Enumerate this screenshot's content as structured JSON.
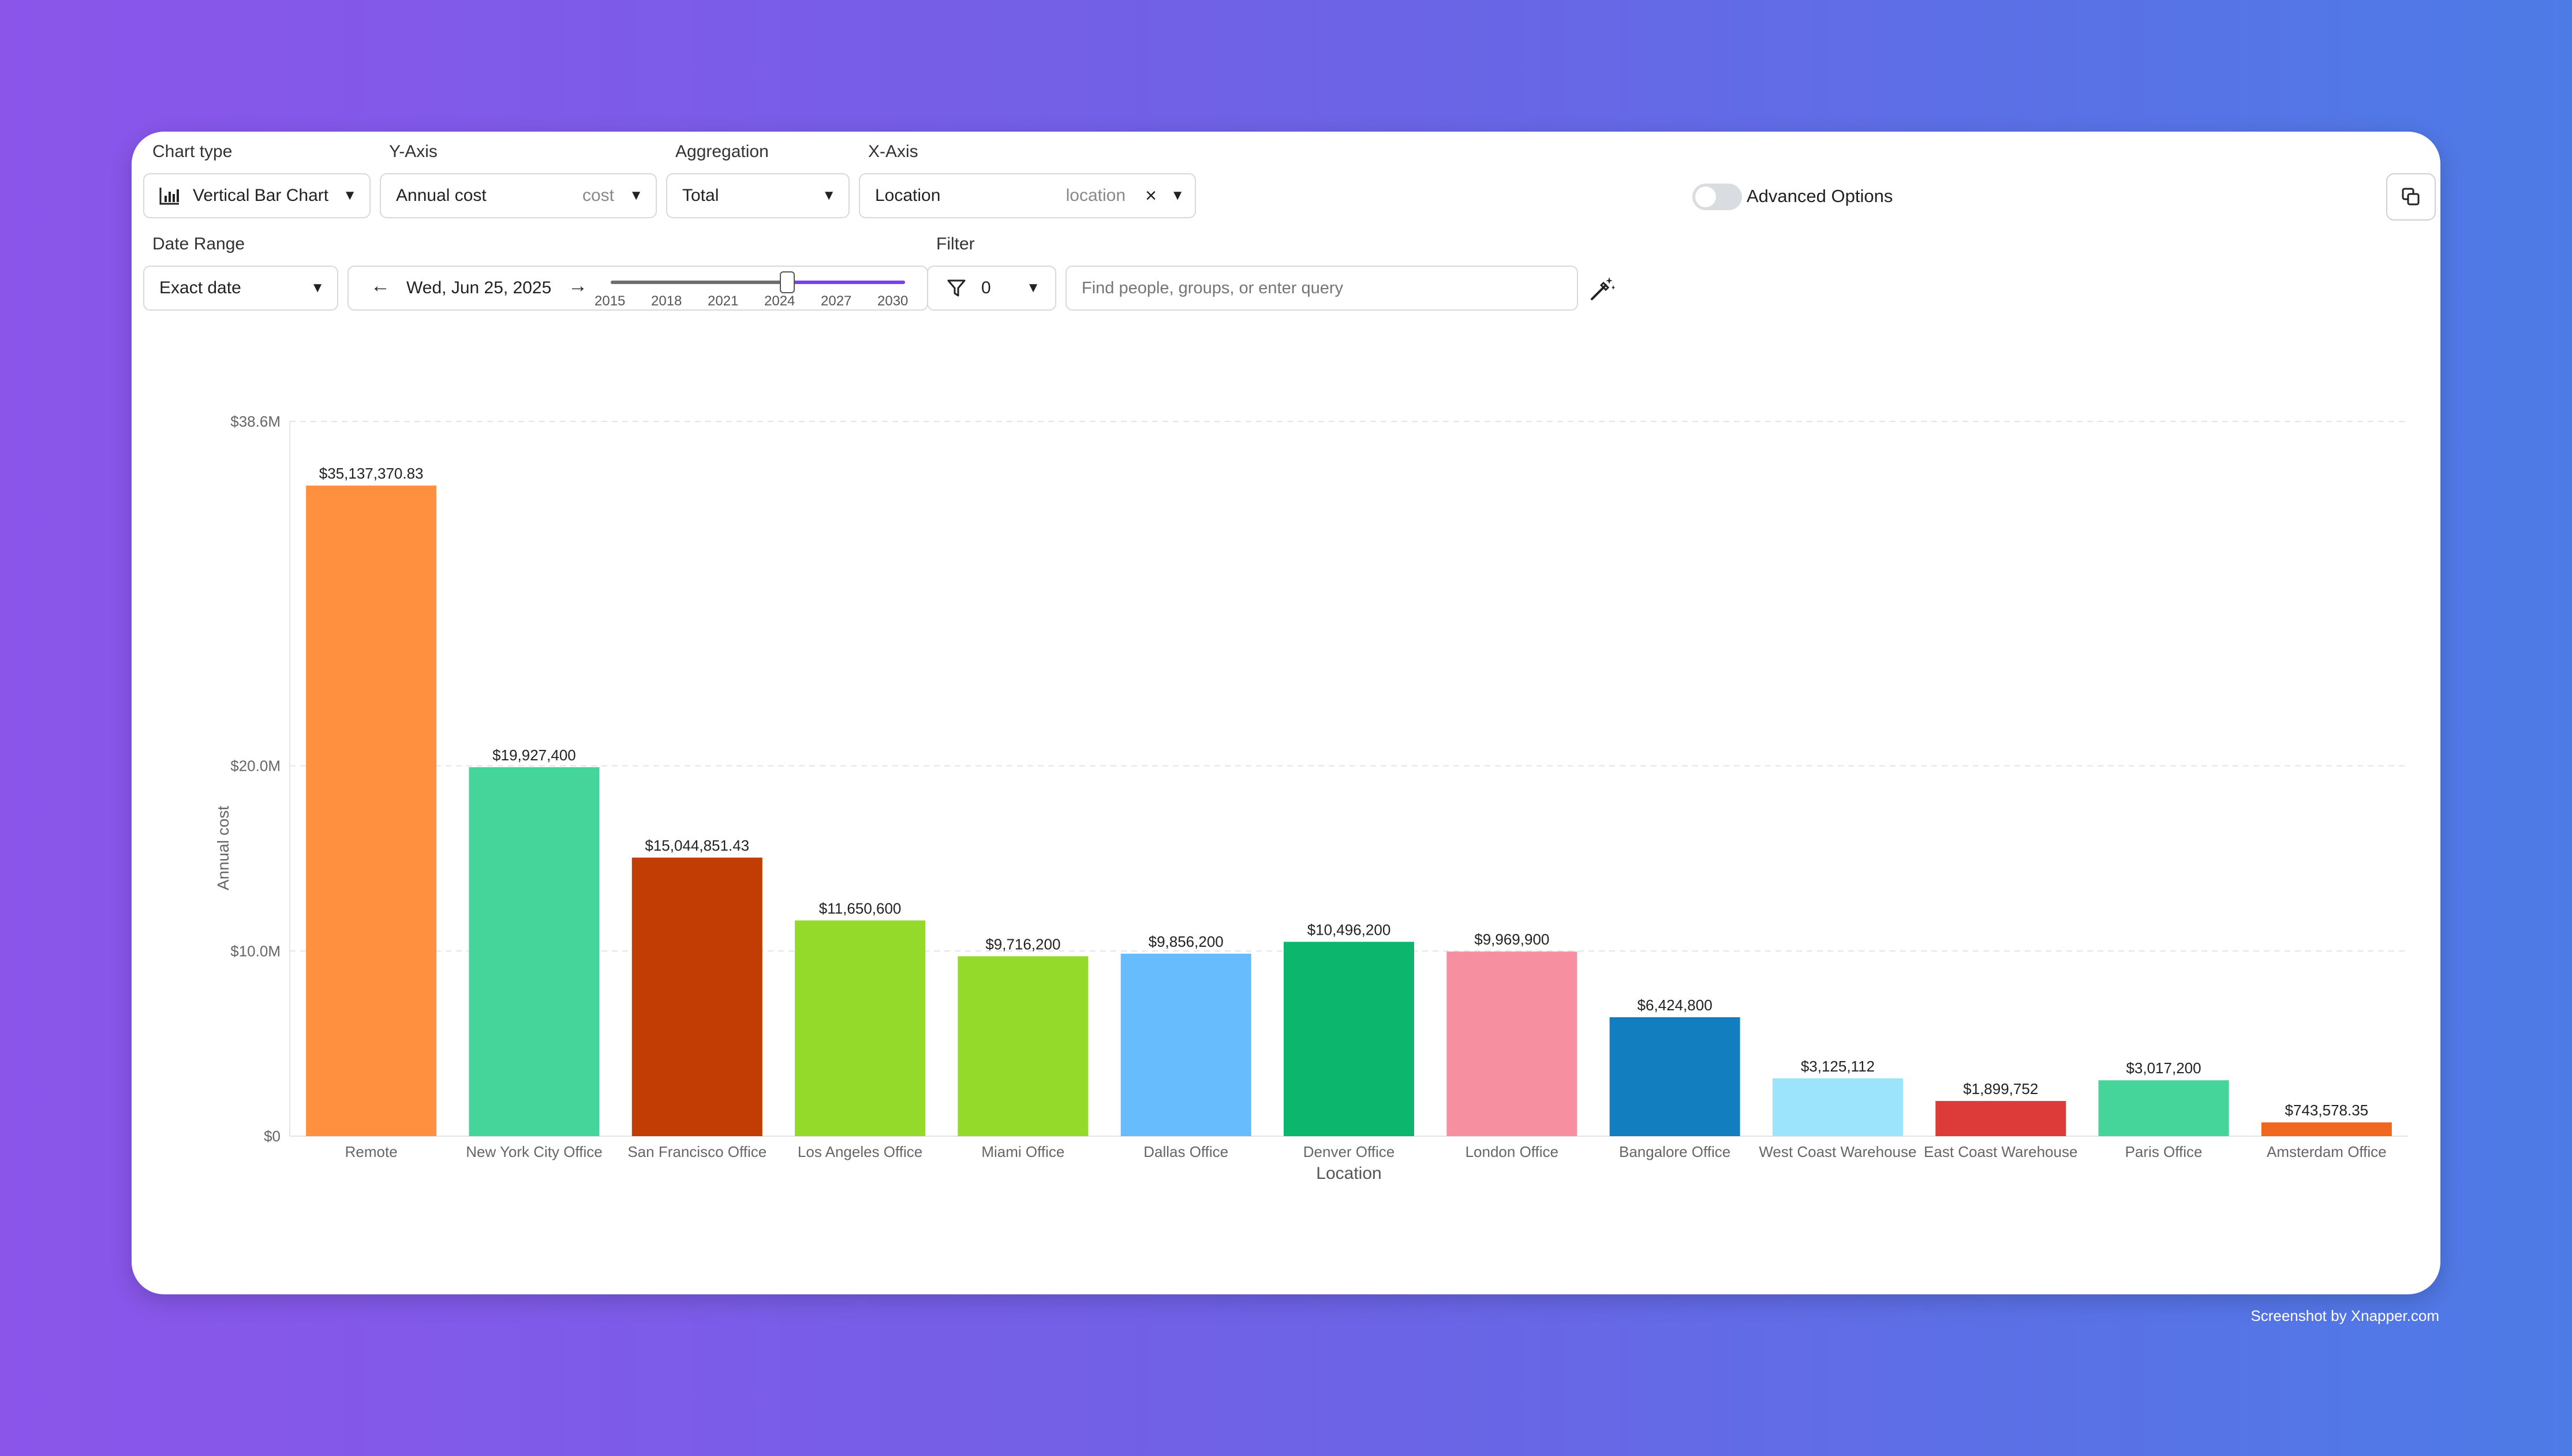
{
  "toolbar": {
    "chart_type": {
      "label": "Chart type",
      "value": "Vertical Bar Chart",
      "icon": "bar-chart-icon"
    },
    "y_axis": {
      "label": "Y-Axis",
      "value": "Annual cost",
      "hint": "cost"
    },
    "aggregation": {
      "label": "Aggregation",
      "value": "Total"
    },
    "x_axis": {
      "label": "X-Axis",
      "value": "Location",
      "hint": "location",
      "clear": "×"
    },
    "advanced": {
      "label": "Advanced Options",
      "on": false
    },
    "date_range": {
      "label": "Date Range",
      "mode": "Exact date",
      "date": "Wed, Jun 25, 2025",
      "prev": "←",
      "next": "→",
      "slider_ticks": [
        "2015",
        "2018",
        "2021",
        "2024",
        "2027",
        "2030"
      ],
      "slider_value": 0.6
    },
    "filter": {
      "label": "Filter",
      "count": "0",
      "placeholder": "Find people, groups, or enter query"
    }
  },
  "watermark": "Screenshot by Xnapper.com",
  "chart_data": {
    "type": "bar",
    "xlabel": "Location",
    "ylabel": "Annual cost",
    "yticks": [
      {
        "value": 0,
        "label": "$0"
      },
      {
        "value": 10000000,
        "label": "$10.0M"
      },
      {
        "value": 20000000,
        "label": "$20.0M"
      },
      {
        "value": 38600000,
        "label": "$38.6M"
      }
    ],
    "ylim": [
      0,
      38600000
    ],
    "categories": [
      "Remote",
      "New York City Office",
      "San Francisco Office",
      "Los Angeles Office",
      "Miami Office",
      "Dallas Office",
      "Denver Office",
      "London Office",
      "Bangalore Office",
      "West Coast Warehouse",
      "East Coast Warehouse",
      "Paris Office",
      "Amsterdam Office"
    ],
    "values": [
      35137370.83,
      19927400,
      15044851.43,
      11650600,
      9716200,
      9856200,
      10496200,
      9969900,
      6424800,
      3125112,
      1899752,
      3017200,
      743578.35
    ],
    "value_labels": [
      "$35,137,370.83",
      "$19,927,400",
      "$15,044,851.43",
      "$11,650,600",
      "$9,716,200",
      "$9,856,200",
      "$10,496,200",
      "$9,969,900",
      "$6,424,800",
      "$3,125,112",
      "$1,899,752",
      "$3,017,200",
      "$743,578.35"
    ],
    "colors": [
      "#ff9040",
      "#45d49a",
      "#c23d03",
      "#94da2b",
      "#94da2b",
      "#66bcfc",
      "#0cb66c",
      "#f690a0",
      "#127ec0",
      "#9ce3fc",
      "#dd3a3a",
      "#45d49a",
      "#f06820"
    ],
    "grid": true
  }
}
